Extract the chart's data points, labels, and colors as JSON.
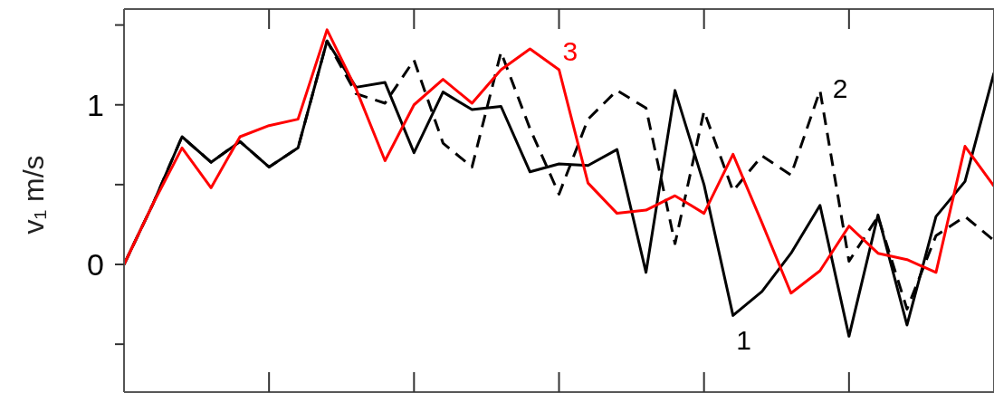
{
  "chart_data": {
    "type": "line",
    "ylabel": "v₁  m/s",
    "categories": [
      null,
      null,
      null,
      null,
      null,
      null,
      null,
      null,
      null,
      null,
      null,
      null,
      null,
      null,
      null,
      null,
      null,
      null,
      null,
      null,
      null,
      null,
      null,
      null,
      null,
      null,
      null,
      null,
      null,
      null,
      null
    ],
    "ylim": [
      -0.8,
      1.6
    ],
    "yticks": [
      {
        "value": -0.5,
        "label": null
      },
      0,
      {
        "value": 0.5,
        "label": null
      },
      1,
      {
        "value": 1.5,
        "label": null
      }
    ],
    "tick_labels": "y",
    "marker": "none",
    "series": [
      {
        "name": "1",
        "color": "#000000",
        "line_style": "solid",
        "values": [
          0,
          0.38,
          0.8,
          0.64,
          0.77,
          0.61,
          0.73,
          1.4,
          1.11,
          1.14,
          0.7,
          1.08,
          0.97,
          0.99,
          0.58,
          0.63,
          0.62,
          0.72,
          -0.05,
          1.09,
          0.5,
          -0.32,
          -0.17,
          0.07,
          0.37,
          -0.45,
          0.31,
          -0.38,
          0.3,
          0.52,
          1.2
        ]
      },
      {
        "name": "2",
        "color": "#000000",
        "line_style": "dashed",
        "values": [
          0,
          0.38,
          0.8,
          0.64,
          0.77,
          0.61,
          0.73,
          1.4,
          1.07,
          1.01,
          1.28,
          0.76,
          0.61,
          1.33,
          0.85,
          0.44,
          0.91,
          1.09,
          0.98,
          0.13,
          0.96,
          0.46,
          0.68,
          0.56,
          1.09,
          0.02,
          0.3,
          -0.28,
          0.18,
          0.3,
          0.15
        ]
      },
      {
        "name": "3",
        "color": "#ff0000",
        "line_style": "solid",
        "values": [
          0,
          0.38,
          0.73,
          0.48,
          0.8,
          0.87,
          0.91,
          1.47,
          1.1,
          0.65,
          1.0,
          1.16,
          1.01,
          1.22,
          1.35,
          1.22,
          0.51,
          0.32,
          0.34,
          0.43,
          0.32,
          0.69,
          0.26,
          -0.18,
          -0.04,
          0.24,
          0.07,
          0.03,
          -0.05,
          0.74,
          0.49
        ]
      }
    ]
  }
}
